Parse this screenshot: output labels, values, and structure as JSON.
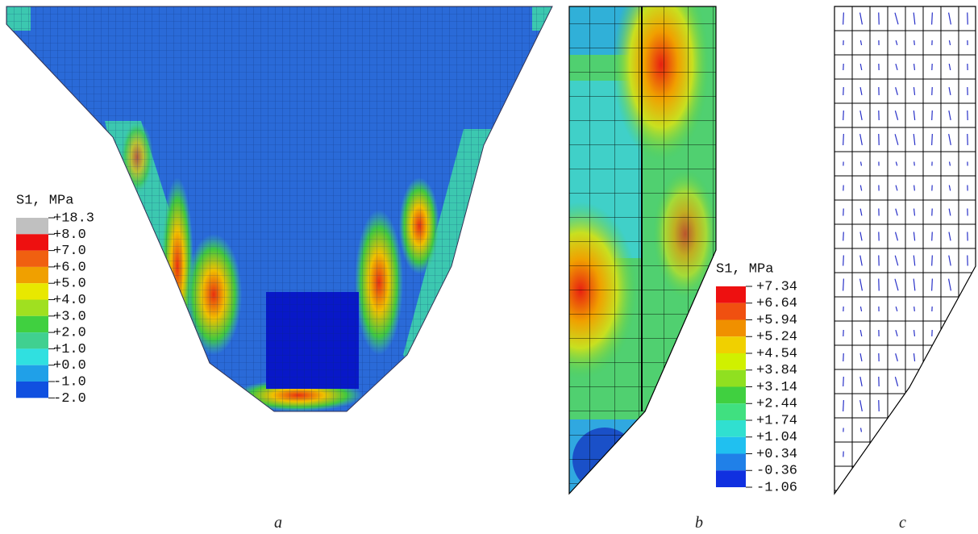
{
  "panels": [
    {
      "caption": "a",
      "legend": {
        "title": "S1, MPa",
        "labels": [
          "+18.3",
          "+8.0",
          "+7.0",
          "+6.0",
          "+5.0",
          "+4.0",
          "+3.0",
          "+2.0",
          "+1.0",
          "+0.0",
          "-1.0",
          "-2.0"
        ]
      }
    },
    {
      "caption": "b",
      "legend": {
        "title": "S1, MPa",
        "labels": [
          "+7.34",
          "+6.64",
          "+5.94",
          "+5.24",
          "+4.54",
          "+3.84",
          "+3.14",
          "+2.44",
          "+1.74",
          "+1.04",
          "+0.34",
          "-0.36",
          "-1.06"
        ]
      }
    },
    {
      "caption": "c"
    }
  ]
}
